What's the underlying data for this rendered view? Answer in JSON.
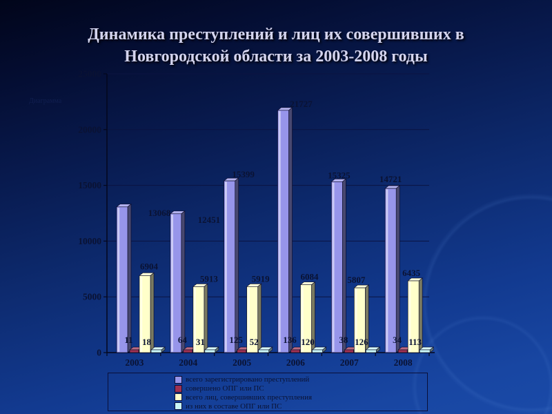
{
  "slide": {
    "title": "Динамика преступлений и лиц их совершивших в Новгородской области за 2003-2008 годы",
    "diagram_watermark": "Диаграмма"
  },
  "chart_data": {
    "type": "bar",
    "title": "Динамика преступлений и лиц их совершивших в Новгородской области за 2003-2008 годы",
    "categories": [
      "2003",
      "2004",
      "2005",
      "2006",
      "2007",
      "2008"
    ],
    "series": [
      {
        "name": "всего зарегистрировано преступлений",
        "color": "#9795ea",
        "values": [
          13068,
          12451,
          15399,
          21727,
          15325,
          14721
        ]
      },
      {
        "name": "совершено ОПГ или ПС",
        "color": "#9e3252",
        "values": [
          11,
          64,
          125,
          136,
          38,
          34
        ]
      },
      {
        "name": "всего лиц, совершивших преступления",
        "color": "#ffffca",
        "values": [
          6904,
          5913,
          5919,
          6084,
          5807,
          6435
        ]
      },
      {
        "name": "из них в составе ОПГ или ПС",
        "color": "#c9f6f6",
        "values": [
          18,
          31,
          52,
          120,
          126,
          113
        ]
      }
    ],
    "ylim": [
      0,
      25000
    ],
    "yticks": [
      0,
      5000,
      10000,
      15000,
      20000,
      25000
    ],
    "xlabel": "",
    "ylabel": "",
    "grid": true,
    "data_labels": true,
    "legend_position": "bottom",
    "style": "3d-clustered-bar"
  },
  "colors": {
    "background_top": "#040d31",
    "background_bottom": "#1a4aa8",
    "title_text": "#d4d4ee",
    "axis_text": "#0a1233",
    "gridline": "#0b1341"
  }
}
